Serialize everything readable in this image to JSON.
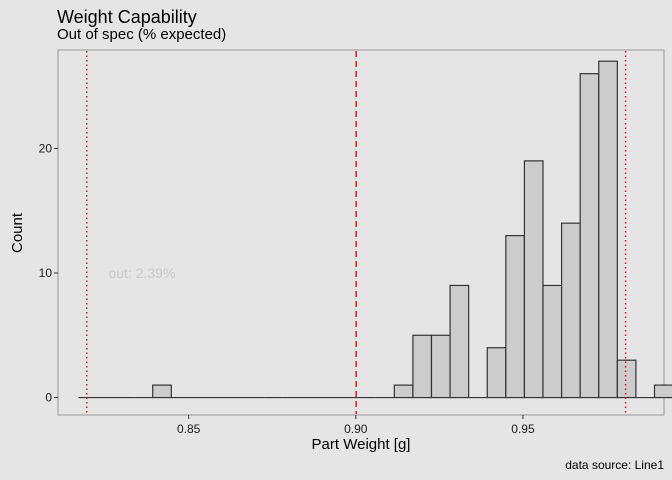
{
  "chart_data": {
    "type": "bar",
    "title": "Weight Capability",
    "subtitle": "Out of spec (% expected)",
    "xlabel": "Part Weight [g]",
    "ylabel": "Count",
    "caption": "data source: Line1",
    "annotation": "out: 2.39%",
    "xlim": [
      0.8109,
      0.9922
    ],
    "ylim": [
      -1.4,
      27.9
    ],
    "x_ticks": [
      "0.85",
      "0.90",
      "0.95"
    ],
    "y_ticks": [
      "0",
      "10",
      "20"
    ],
    "bin_width": 0.00556,
    "bins_start": 0.817,
    "counts": [
      0,
      0,
      0,
      0,
      1,
      0,
      0,
      0,
      0,
      0,
      0,
      0,
      0,
      0,
      0,
      0,
      0,
      1,
      5,
      5,
      9,
      0,
      4,
      13,
      19,
      9,
      14,
      26,
      27,
      3,
      0,
      1,
      0
    ],
    "lsl": 0.8195,
    "usl": 0.9807,
    "target": 0.9001,
    "colors": {
      "bar_fill": "#cccccc",
      "bar_stroke": "#333333",
      "spec_line": "#e31a1c",
      "panel_bg": "#e5e5e5",
      "panel_border": "#999999"
    }
  }
}
